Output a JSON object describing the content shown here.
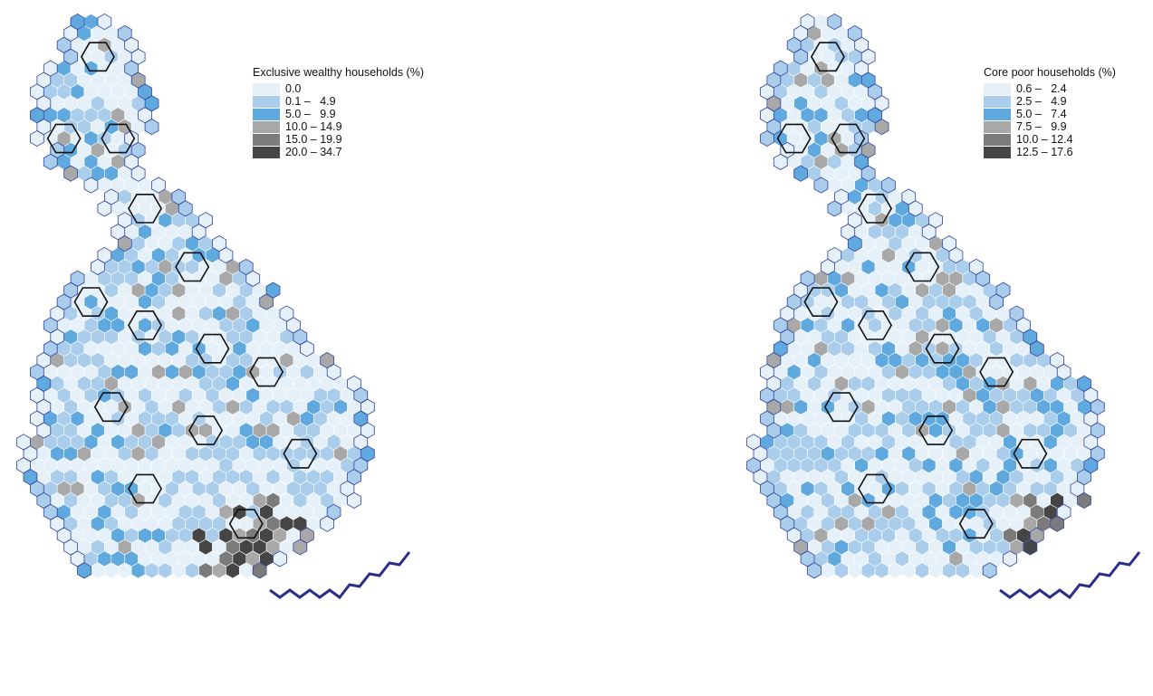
{
  "maps": [
    {
      "id": "left",
      "legend": {
        "title": "Exclusive wealthy households (%)",
        "classes": [
          {
            "label": "0.0",
            "color": "#e6f0f8"
          },
          {
            "label": "0.1 –   4.9",
            "color": "#a9cdea"
          },
          {
            "label": "5.0 –   9.9",
            "color": "#5fa9df"
          },
          {
            "label": "10.0 – 14.9",
            "color": "#a8a8a8"
          },
          {
            "label": "15.0 – 19.9",
            "color": "#7b7b7b"
          },
          {
            "label": "20.0 – 34.7",
            "color": "#454545"
          }
        ]
      }
    },
    {
      "id": "right",
      "legend": {
        "title": "Core poor households (%)",
        "classes": [
          {
            "label": "0.6 –   2.4",
            "color": "#e6f0f8"
          },
          {
            "label": "2.5 –   4.9",
            "color": "#a9cdea"
          },
          {
            "label": "5.0 –   7.4",
            "color": "#5fa9df"
          },
          {
            "label": "7.5 –   9.9",
            "color": "#a8a8a8"
          },
          {
            "label": "10.0 – 12.4",
            "color": "#7b7b7b"
          },
          {
            "label": "12.5 – 17.6",
            "color": "#454545"
          }
        ]
      }
    }
  ],
  "colors": {
    "hex_stroke": "#ffffff",
    "coast": "#2b3f9e",
    "region_outline": "#111111",
    "region_boundary_outer": "#2b3f9e",
    "london_line": "#2b2d8a"
  }
}
